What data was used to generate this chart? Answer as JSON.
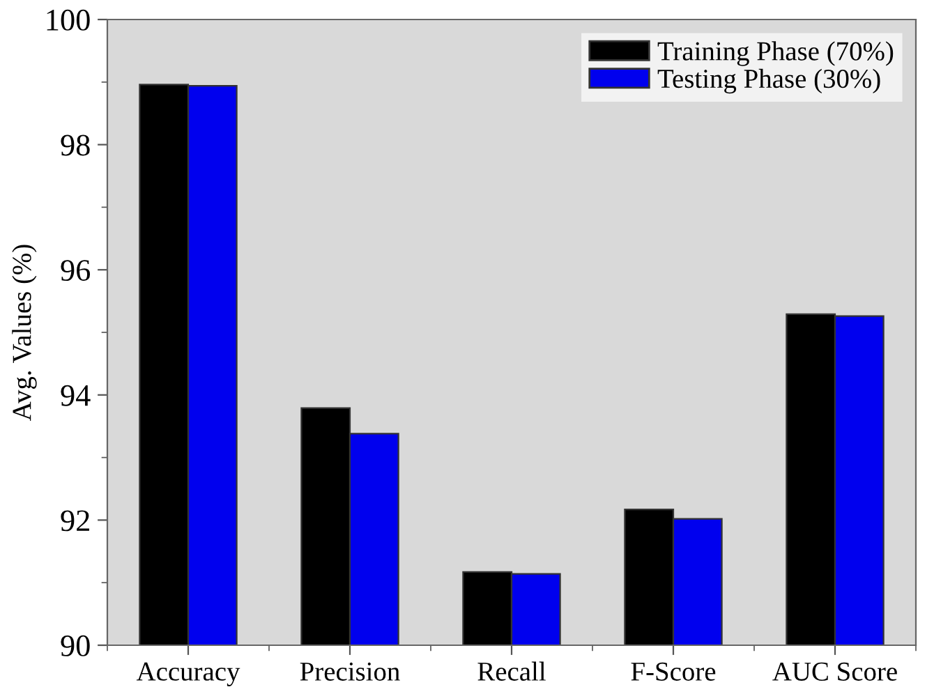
{
  "chart_data": {
    "type": "bar",
    "ylabel": "Avg. Values (%)",
    "categories": [
      "Accuracy",
      "Precision",
      "Recall",
      "F-Score",
      "AUC Score"
    ],
    "series": [
      {
        "name": "Training Phase (70%)",
        "color": "#000000",
        "values": [
          98.96,
          93.79,
          91.17,
          92.17,
          95.29
        ]
      },
      {
        "name": "Testing Phase (30%)",
        "color": "#0000ee",
        "values": [
          98.94,
          93.38,
          91.14,
          92.02,
          95.26
        ]
      }
    ],
    "ylim": [
      90,
      100
    ],
    "yticks": [
      90,
      92,
      94,
      96,
      98,
      100
    ],
    "grid": false,
    "legend": "top right"
  }
}
